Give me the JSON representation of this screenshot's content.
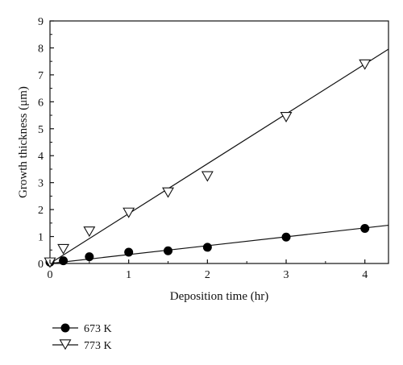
{
  "chart_data": {
    "type": "scatter",
    "xlabel": "Deposition time (hr)",
    "ylabel": "Growth thickness (μm)",
    "xlim": [
      0,
      4.3
    ],
    "ylim": [
      0,
      9
    ],
    "xticks": [
      0,
      1,
      2,
      3,
      4
    ],
    "yticks": [
      0,
      1,
      2,
      3,
      4,
      5,
      6,
      7,
      8,
      9
    ],
    "grid": false,
    "legend_position": "bottom-left",
    "series": [
      {
        "name": "673 K",
        "marker": "filled-circle",
        "color": "#000000",
        "x": [
          0,
          0.17,
          0.5,
          1,
          1.5,
          2,
          3,
          4
        ],
        "y": [
          0.05,
          0.1,
          0.25,
          0.42,
          0.47,
          0.6,
          0.98,
          1.3
        ],
        "fit_slope": 0.33
      },
      {
        "name": "773 K",
        "marker": "open-triangle-down",
        "color": "#000000",
        "x": [
          0,
          0.17,
          0.5,
          1,
          1.5,
          2,
          3,
          4
        ],
        "y": [
          0.05,
          0.55,
          1.2,
          1.9,
          2.65,
          3.25,
          5.45,
          7.4
        ],
        "fit_slope": 1.85
      }
    ]
  }
}
